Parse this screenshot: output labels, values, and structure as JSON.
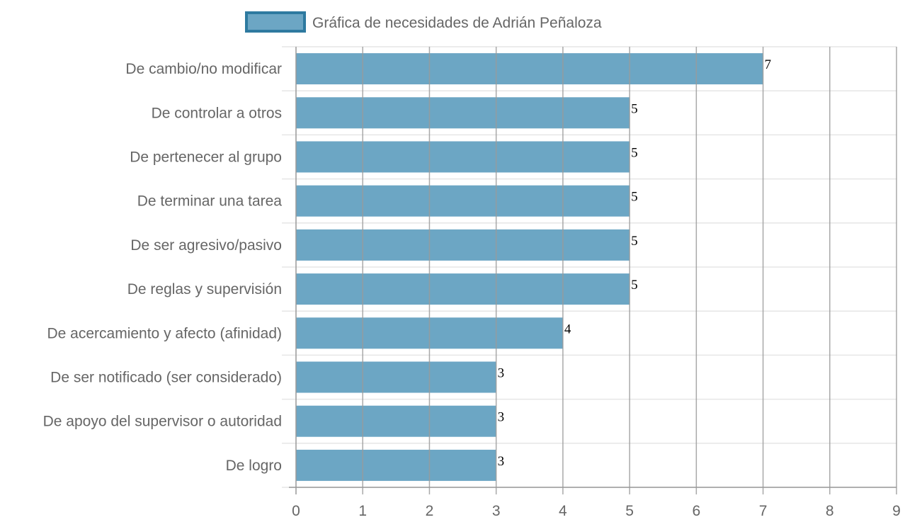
{
  "chart_data": {
    "type": "bar",
    "orientation": "horizontal",
    "legend": {
      "label": "Gráfica de necesidades de Adrián Peñaloza",
      "position": "top"
    },
    "categories": [
      "De cambio/no modificar",
      "De controlar a otros",
      "De pertenecer al grupo",
      "De terminar una tarea",
      "De ser agresivo/pasivo",
      "De reglas y supervisión",
      "De acercamiento y afecto (afinidad)",
      "De ser notificado (ser considerado)",
      "De apoyo del supervisor o autoridad",
      "De logro"
    ],
    "series": [
      {
        "name": "Gráfica de necesidades de Adrián Peñaloza",
        "values": [
          7,
          5,
          5,
          5,
          5,
          5,
          4,
          3,
          3,
          3
        ]
      }
    ],
    "xlim": [
      0,
      9
    ],
    "xticks": [
      0,
      1,
      2,
      3,
      4,
      5,
      6,
      7,
      8,
      9
    ],
    "grid": true,
    "data_labels": true,
    "colors": {
      "bar_fill": "#6ca6c4",
      "bar_border": "#2e7aa0",
      "grid": "#e6e6e6",
      "vgrid": "#9a9a9a",
      "axis": "#999999",
      "text": "#666666",
      "data_label": "#000000"
    }
  }
}
